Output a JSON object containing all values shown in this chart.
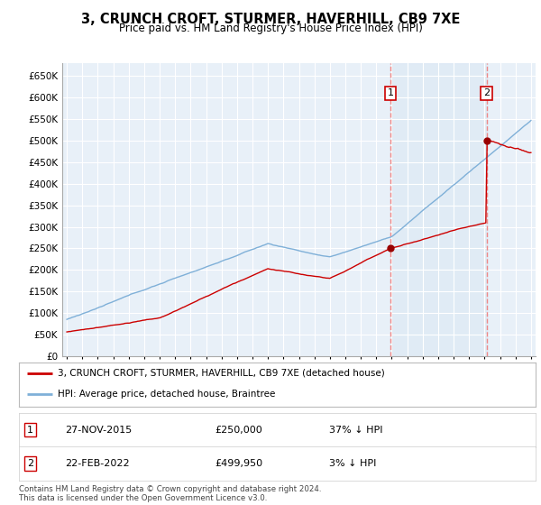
{
  "title": "3, CRUNCH CROFT, STURMER, HAVERHILL, CB9 7XE",
  "subtitle": "Price paid vs. HM Land Registry's House Price Index (HPI)",
  "ylim": [
    0,
    680000
  ],
  "yticks": [
    0,
    50000,
    100000,
    150000,
    200000,
    250000,
    300000,
    350000,
    400000,
    450000,
    500000,
    550000,
    600000,
    650000
  ],
  "ytick_labels": [
    "£0",
    "£50K",
    "£100K",
    "£150K",
    "£200K",
    "£250K",
    "£300K",
    "£350K",
    "£400K",
    "£450K",
    "£500K",
    "£550K",
    "£600K",
    "£650K"
  ],
  "transaction1_date": 2015.91,
  "transaction1_price": 250000,
  "transaction2_date": 2022.13,
  "transaction2_price": 499950,
  "legend_property": "3, CRUNCH CROFT, STURMER, HAVERHILL, CB9 7XE (detached house)",
  "legend_hpi": "HPI: Average price, detached house, Braintree",
  "label1_date": "27-NOV-2015",
  "label1_price": "£250,000",
  "label1_pct": "37% ↓ HPI",
  "label2_date": "22-FEB-2022",
  "label2_price": "£499,950",
  "label2_pct": "3% ↓ HPI",
  "footer": "Contains HM Land Registry data © Crown copyright and database right 2024.\nThis data is licensed under the Open Government Licence v3.0.",
  "property_color": "#cc0000",
  "hpi_color": "#7fb0d8",
  "hpi_fill_color": "#ddeaf5",
  "vline_color": "#ee8888",
  "marker_color": "#990000",
  "background_color": "#e8f0f8",
  "grid_color": "#ffffff"
}
